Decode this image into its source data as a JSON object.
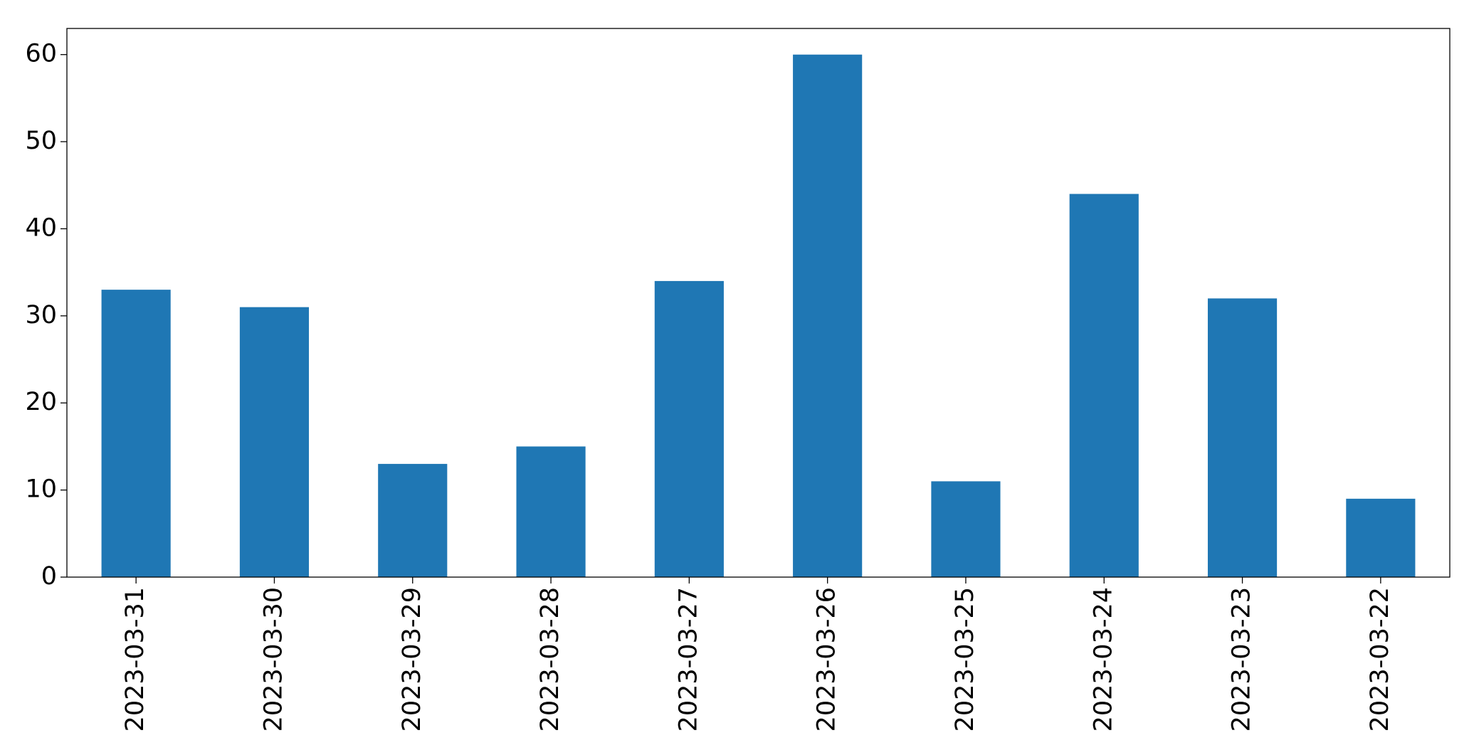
{
  "chart_data": {
    "type": "bar",
    "categories": [
      "2023-03-31",
      "2023-03-30",
      "2023-03-29",
      "2023-03-28",
      "2023-03-27",
      "2023-03-26",
      "2023-03-25",
      "2023-03-24",
      "2023-03-23",
      "2023-03-22"
    ],
    "values": [
      33,
      31,
      13,
      15,
      34,
      60,
      11,
      44,
      32,
      9
    ],
    "color": "#1f77b4",
    "ylim": [
      0,
      63
    ],
    "yticks": [
      0,
      10,
      20,
      30,
      40,
      50,
      60
    ],
    "grid": false
  }
}
